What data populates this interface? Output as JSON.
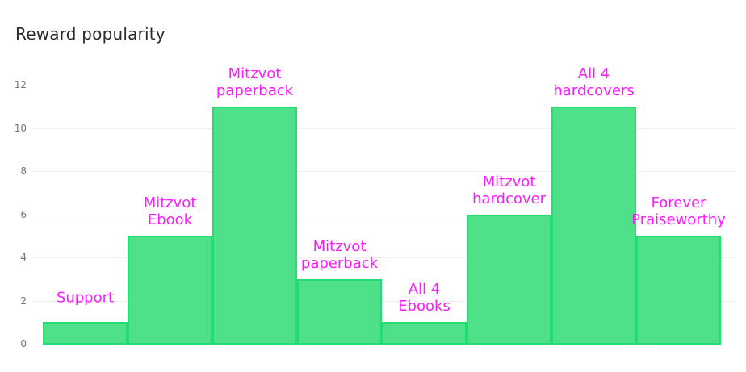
{
  "title": "Reward popularity",
  "colors": {
    "background": "#ffffff",
    "title_text": "#2b2b2b",
    "bar_fill": "#4FE08A",
    "bar_border": "#22DD70",
    "bar_label": "#FB1CFB",
    "tick_text": "#757575",
    "gridline": "#f0f0f0"
  },
  "chart_data": {
    "type": "bar",
    "title": "Reward popularity",
    "categories": [
      "Support",
      "Mitzvot Ebook",
      "Mitzvot paperback",
      "Mitzvot paperback",
      "All 4 Ebooks",
      "Mitzvot hardcover",
      "All 4 hardcovers",
      "Forever Praiseworthy"
    ],
    "label_lines": [
      [
        "Support"
      ],
      [
        "Mitzvot",
        "Ebook"
      ],
      [
        "Mitzvot",
        "paperback"
      ],
      [
        "Mitzvot",
        "paperback"
      ],
      [
        "All 4",
        "Ebooks"
      ],
      [
        "Mitzvot",
        "hardcover"
      ],
      [
        "All 4",
        "hardcovers"
      ],
      [
        "Forever",
        "Praiseworthy"
      ]
    ],
    "values": [
      1,
      5,
      11,
      3,
      1,
      6,
      11,
      5
    ],
    "xlabel": "",
    "ylabel": "",
    "ylim": [
      0,
      12
    ],
    "yticks": [
      0,
      2,
      4,
      6,
      8,
      10,
      12
    ],
    "gridline_values": [
      2,
      4,
      6,
      8,
      10
    ],
    "grid": true,
    "legend": false,
    "label_position": "above-bars",
    "bars_contiguous": true
  }
}
